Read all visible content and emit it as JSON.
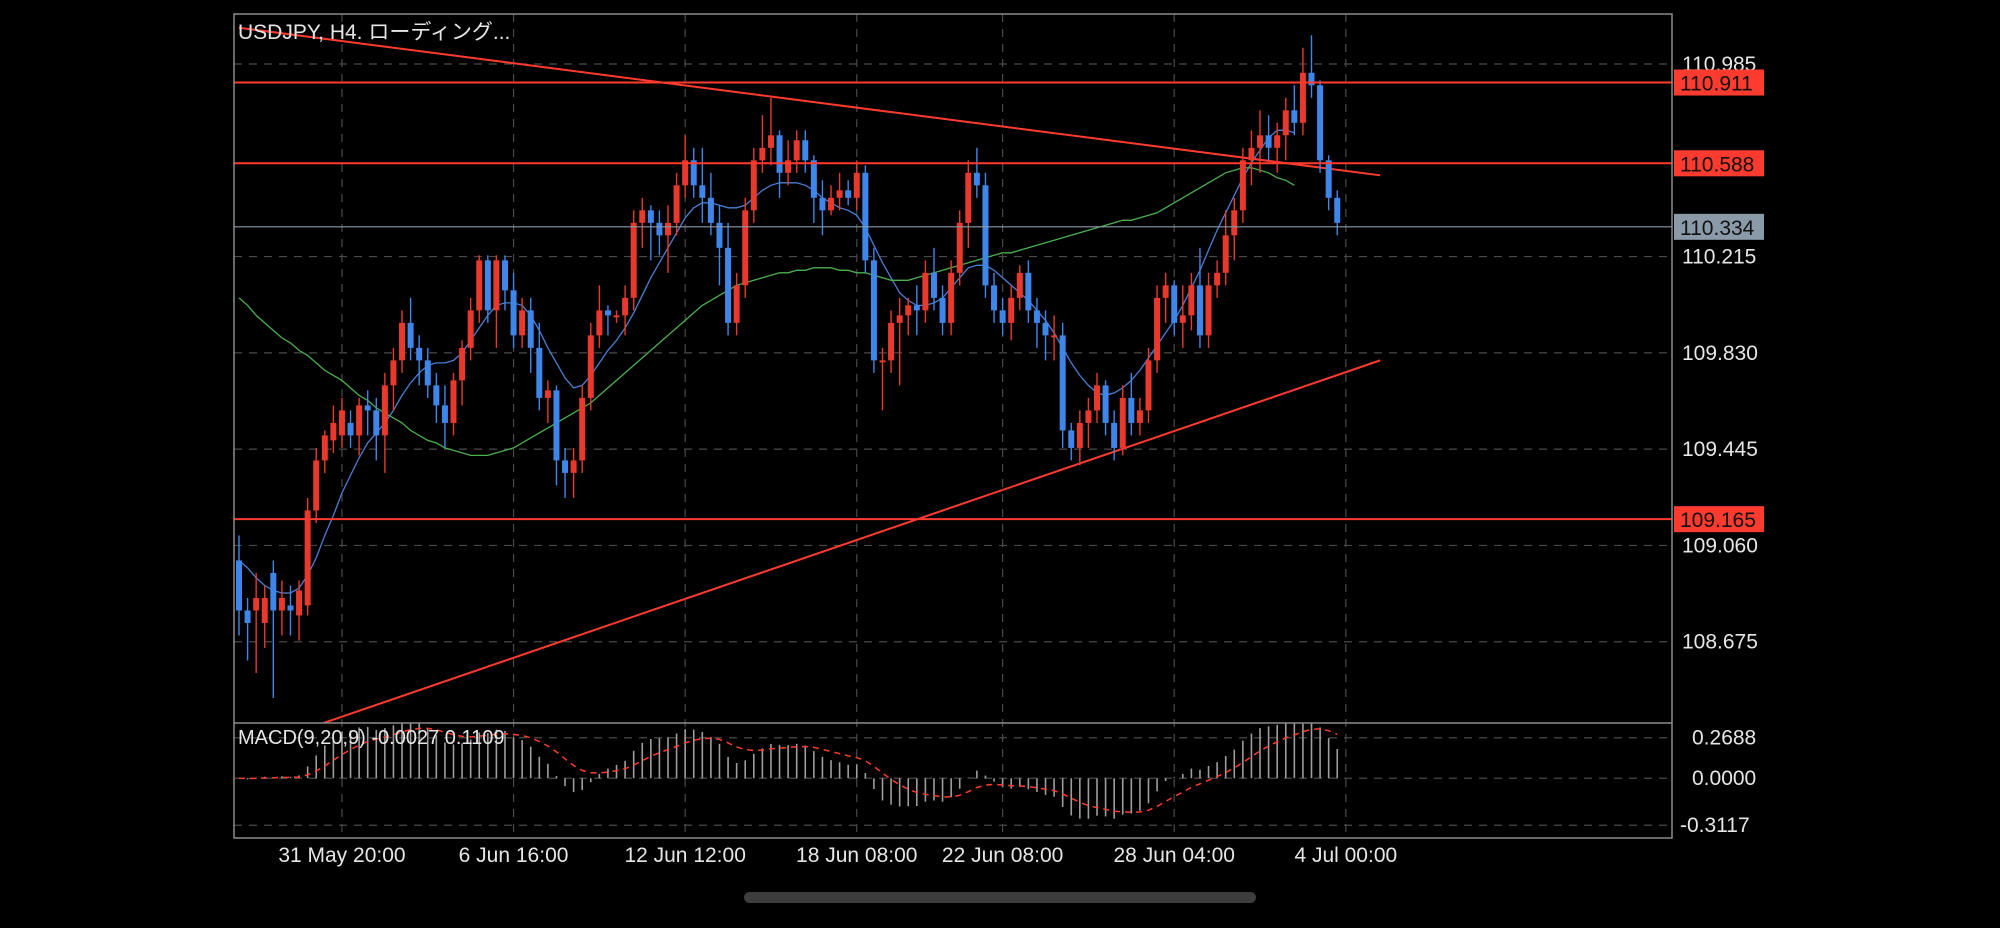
{
  "chart_data": {
    "type": "candlestick",
    "title": "USDJPY, H4. ローディング...",
    "symbol": "USDJPY",
    "timeframe": "H4",
    "grid": true,
    "price_axis": {
      "ylim": [
        108.35,
        111.185
      ],
      "ticks": [
        "110.985",
        "110.215",
        "109.830",
        "109.445",
        "109.060",
        "108.675"
      ],
      "tick_values": [
        110.985,
        110.215,
        109.83,
        109.445,
        109.06,
        108.675
      ]
    },
    "x_axis": {
      "ticks": [
        "31 May 20:00",
        "6 Jun 16:00",
        "12 Jun 12:00",
        "18 Jun 08:00",
        "22 Jun 08:00",
        "28 Jun 04:00",
        "4 Jul 00:00"
      ],
      "tick_bars": [
        12,
        32,
        52,
        72,
        89,
        109,
        129
      ]
    },
    "horizontal_lines": [
      {
        "value": 110.911,
        "label": "110.911",
        "color": "#ff3b30"
      },
      {
        "value": 110.588,
        "label": "110.588",
        "color": "#ff3b30"
      },
      {
        "value": 109.165,
        "label": "109.165",
        "color": "#ff3b30"
      }
    ],
    "current_price": {
      "value": 110.334,
      "label": "110.334",
      "color": "#8a9aa8"
    },
    "trendlines": [
      {
        "from": {
          "bar": 0,
          "price": 111.13
        },
        "to": {
          "bar": 133,
          "price": 110.54
        },
        "color": "#ff3b30"
      },
      {
        "from": {
          "bar": 9,
          "price": 108.34
        },
        "to": {
          "bar": 133,
          "price": 109.8
        },
        "color": "#ff3b30"
      }
    ],
    "candles": [
      [
        109.0,
        109.1,
        108.7,
        108.8
      ],
      [
        108.8,
        108.85,
        108.6,
        108.75
      ],
      [
        108.8,
        108.95,
        108.55,
        108.85
      ],
      [
        108.75,
        108.9,
        108.65,
        108.85
      ],
      [
        108.95,
        109.0,
        108.45,
        108.8
      ],
      [
        108.8,
        108.92,
        108.7,
        108.85
      ],
      [
        108.82,
        108.9,
        108.7,
        108.8
      ],
      [
        108.78,
        108.92,
        108.68,
        108.88
      ],
      [
        108.82,
        109.25,
        108.78,
        109.2
      ],
      [
        109.2,
        109.45,
        109.15,
        109.4
      ],
      [
        109.4,
        109.52,
        109.35,
        109.5
      ],
      [
        109.48,
        109.62,
        109.43,
        109.55
      ],
      [
        109.5,
        109.65,
        109.45,
        109.6
      ],
      [
        109.55,
        109.6,
        109.45,
        109.5
      ],
      [
        109.5,
        109.65,
        109.42,
        109.62
      ],
      [
        109.62,
        109.68,
        109.5,
        109.6
      ],
      [
        109.6,
        109.65,
        109.4,
        109.5
      ],
      [
        109.5,
        109.75,
        109.35,
        109.7
      ],
      [
        109.7,
        109.85,
        109.6,
        109.8
      ],
      [
        109.8,
        110.0,
        109.75,
        109.95
      ],
      [
        109.95,
        110.05,
        109.8,
        109.85
      ],
      [
        109.85,
        109.9,
        109.7,
        109.8
      ],
      [
        109.8,
        109.85,
        109.65,
        109.7
      ],
      [
        109.7,
        109.75,
        109.55,
        109.62
      ],
      [
        109.62,
        109.7,
        109.45,
        109.55
      ],
      [
        109.55,
        109.75,
        109.5,
        109.72
      ],
      [
        109.72,
        109.88,
        109.62,
        109.85
      ],
      [
        109.85,
        110.05,
        109.8,
        110.0
      ],
      [
        110.0,
        110.22,
        109.95,
        110.2
      ],
      [
        110.2,
        110.22,
        109.95,
        110.0
      ],
      [
        110.0,
        110.22,
        109.85,
        110.2
      ],
      [
        110.2,
        110.22,
        110.0,
        110.08
      ],
      [
        110.08,
        110.15,
        109.85,
        109.9
      ],
      [
        109.9,
        110.05,
        109.85,
        110.0
      ],
      [
        110.0,
        110.05,
        109.75,
        109.85
      ],
      [
        109.85,
        109.95,
        109.6,
        109.65
      ],
      [
        109.65,
        109.72,
        109.55,
        109.68
      ],
      [
        109.68,
        109.7,
        109.3,
        109.4
      ],
      [
        109.4,
        109.45,
        109.25,
        109.35
      ],
      [
        109.35,
        109.45,
        109.25,
        109.4
      ],
      [
        109.4,
        109.7,
        109.35,
        109.65
      ],
      [
        109.65,
        109.95,
        109.6,
        109.9
      ],
      [
        109.9,
        110.1,
        109.85,
        110.0
      ],
      [
        110.0,
        110.02,
        109.9,
        109.98
      ],
      [
        109.98,
        110.0,
        109.95,
        109.98
      ],
      [
        109.98,
        110.1,
        109.9,
        110.05
      ],
      [
        110.05,
        110.4,
        110.0,
        110.35
      ],
      [
        110.35,
        110.45,
        110.25,
        110.4
      ],
      [
        110.4,
        110.42,
        110.2,
        110.35
      ],
      [
        110.35,
        110.4,
        110.22,
        110.3
      ],
      [
        110.3,
        110.42,
        110.15,
        110.35
      ],
      [
        110.35,
        110.55,
        110.3,
        110.5
      ],
      [
        110.5,
        110.7,
        110.45,
        110.6
      ],
      [
        110.6,
        110.65,
        110.45,
        110.5
      ],
      [
        110.5,
        110.65,
        110.35,
        110.45
      ],
      [
        110.45,
        110.55,
        110.3,
        110.35
      ],
      [
        110.35,
        110.42,
        110.1,
        110.25
      ],
      [
        110.25,
        110.35,
        109.9,
        109.95
      ],
      [
        109.95,
        110.15,
        109.9,
        110.1
      ],
      [
        110.1,
        110.45,
        110.05,
        110.4
      ],
      [
        110.4,
        110.65,
        110.35,
        110.6
      ],
      [
        110.6,
        110.78,
        110.55,
        110.65
      ],
      [
        110.65,
        110.85,
        110.58,
        110.7
      ],
      [
        110.7,
        110.72,
        110.45,
        110.55
      ],
      [
        110.55,
        110.68,
        110.5,
        110.6
      ],
      [
        110.6,
        110.72,
        110.55,
        110.68
      ],
      [
        110.68,
        110.72,
        110.55,
        110.6
      ],
      [
        110.6,
        110.62,
        110.35,
        110.45
      ],
      [
        110.45,
        110.52,
        110.3,
        110.4
      ],
      [
        110.4,
        110.5,
        110.38,
        110.45
      ],
      [
        110.45,
        110.55,
        110.4,
        110.48
      ],
      [
        110.48,
        110.52,
        110.42,
        110.45
      ],
      [
        110.45,
        110.6,
        110.4,
        110.55
      ],
      [
        110.55,
        110.58,
        110.15,
        110.2
      ],
      [
        110.2,
        110.25,
        109.75,
        109.8
      ],
      [
        109.8,
        109.85,
        109.6,
        109.8
      ],
      [
        109.8,
        110.0,
        109.75,
        109.95
      ],
      [
        109.95,
        110.05,
        109.7,
        109.98
      ],
      [
        109.98,
        110.05,
        109.9,
        110.02
      ],
      [
        110.02,
        110.1,
        109.9,
        110.0
      ],
      [
        110.0,
        110.2,
        109.95,
        110.15
      ],
      [
        110.15,
        110.25,
        110.0,
        110.05
      ],
      [
        110.05,
        110.1,
        109.9,
        109.95
      ],
      [
        109.95,
        110.2,
        109.9,
        110.15
      ],
      [
        110.15,
        110.4,
        110.1,
        110.35
      ],
      [
        110.35,
        110.6,
        110.25,
        110.55
      ],
      [
        110.55,
        110.65,
        110.45,
        110.5
      ],
      [
        110.5,
        110.55,
        110.05,
        110.1
      ],
      [
        110.1,
        110.15,
        109.95,
        110.0
      ],
      [
        110.0,
        110.05,
        109.9,
        109.95
      ],
      [
        109.95,
        110.1,
        109.88,
        110.05
      ],
      [
        110.05,
        110.18,
        110.0,
        110.15
      ],
      [
        110.15,
        110.2,
        109.95,
        110.0
      ],
      [
        110.0,
        110.05,
        109.85,
        109.95
      ],
      [
        109.95,
        110.0,
        109.8,
        109.9
      ],
      [
        109.9,
        109.98,
        109.8,
        109.9
      ],
      [
        109.9,
        109.95,
        109.45,
        109.52
      ],
      [
        109.52,
        109.55,
        109.4,
        109.45
      ],
      [
        109.45,
        109.6,
        109.38,
        109.55
      ],
      [
        109.55,
        109.65,
        109.45,
        109.6
      ],
      [
        109.6,
        109.75,
        109.55,
        109.7
      ],
      [
        109.7,
        109.72,
        109.5,
        109.55
      ],
      [
        109.55,
        109.6,
        109.4,
        109.45
      ],
      [
        109.45,
        109.7,
        109.42,
        109.65
      ],
      [
        109.65,
        109.75,
        109.5,
        109.55
      ],
      [
        109.55,
        109.65,
        109.5,
        109.6
      ],
      [
        109.6,
        109.85,
        109.55,
        109.8
      ],
      [
        109.8,
        110.1,
        109.75,
        110.05
      ],
      [
        110.05,
        110.15,
        109.95,
        110.1
      ],
      [
        110.1,
        110.12,
        109.9,
        109.95
      ],
      [
        109.95,
        110.1,
        109.85,
        109.98
      ],
      [
        109.98,
        110.15,
        109.92,
        110.1
      ],
      [
        110.1,
        110.25,
        109.85,
        109.9
      ],
      [
        109.9,
        110.15,
        109.85,
        110.1
      ],
      [
        110.1,
        110.2,
        110.05,
        110.15
      ],
      [
        110.15,
        110.4,
        110.1,
        110.3
      ],
      [
        110.3,
        110.45,
        110.2,
        110.4
      ],
      [
        110.4,
        110.65,
        110.35,
        110.6
      ],
      [
        110.6,
        110.72,
        110.5,
        110.65
      ],
      [
        110.65,
        110.8,
        110.55,
        110.7
      ],
      [
        110.7,
        110.78,
        110.6,
        110.65
      ],
      [
        110.65,
        110.75,
        110.55,
        110.7
      ],
      [
        110.7,
        110.85,
        110.6,
        110.8
      ],
      [
        110.8,
        110.9,
        110.7,
        110.75
      ],
      [
        110.75,
        111.05,
        110.7,
        110.95
      ],
      [
        110.95,
        111.1,
        110.85,
        110.9
      ],
      [
        110.9,
        110.92,
        110.55,
        110.6
      ],
      [
        110.6,
        110.62,
        110.4,
        110.45
      ],
      [
        110.45,
        110.48,
        110.3,
        110.35
      ]
    ],
    "moving_averages": [
      {
        "name": "MA fast",
        "color": "#4a7fd4",
        "values": [
          109.0,
          108.97,
          108.93,
          108.9,
          108.88,
          108.87,
          108.87,
          108.89,
          108.94,
          109.01,
          109.1,
          109.18,
          109.27,
          109.34,
          109.41,
          109.47,
          109.51,
          109.55,
          109.6,
          109.66,
          109.71,
          109.75,
          109.78,
          109.79,
          109.79,
          109.8,
          109.83,
          109.88,
          109.93,
          109.98,
          110.02,
          110.03,
          110.03,
          110.02,
          109.98,
          109.92,
          109.85,
          109.79,
          109.73,
          109.69,
          109.7,
          109.74,
          109.79,
          109.84,
          109.88,
          109.93,
          109.99,
          110.06,
          110.13,
          110.19,
          110.25,
          110.31,
          110.37,
          110.41,
          110.43,
          110.43,
          110.42,
          110.41,
          110.41,
          110.42,
          110.45,
          110.48,
          110.5,
          110.51,
          110.51,
          110.51,
          110.5,
          110.48,
          110.45,
          110.43,
          110.41,
          110.4,
          110.38,
          110.33,
          110.26,
          110.19,
          110.13,
          110.07,
          110.04,
          110.02,
          110.02,
          110.03,
          110.05,
          110.09,
          110.13,
          110.17,
          110.18,
          110.18,
          110.16,
          110.13,
          110.1,
          110.07,
          110.04,
          110.0,
          109.96,
          109.91,
          109.85,
          109.79,
          109.74,
          109.7,
          109.67,
          109.66,
          109.67,
          109.69,
          109.72,
          109.76,
          109.81,
          109.86,
          109.91,
          109.96,
          110.02,
          110.09,
          110.16,
          110.24,
          110.32,
          110.39,
          110.46,
          110.53,
          110.59,
          110.64,
          110.69,
          110.72,
          110.72,
          110.71
        ]
      },
      {
        "name": "MA slow",
        "color": "#4caf50",
        "values": [
          110.05,
          110.02,
          109.98,
          109.95,
          109.92,
          109.89,
          109.87,
          109.84,
          109.82,
          109.79,
          109.76,
          109.74,
          109.72,
          109.69,
          109.66,
          109.64,
          109.61,
          109.59,
          109.57,
          109.55,
          109.52,
          109.5,
          109.48,
          109.47,
          109.45,
          109.44,
          109.43,
          109.42,
          109.42,
          109.42,
          109.43,
          109.44,
          109.45,
          109.47,
          109.49,
          109.51,
          109.53,
          109.55,
          109.57,
          109.59,
          109.61,
          109.63,
          109.66,
          109.69,
          109.72,
          109.75,
          109.78,
          109.81,
          109.84,
          109.87,
          109.9,
          109.93,
          109.96,
          109.99,
          110.02,
          110.04,
          110.06,
          110.08,
          110.1,
          110.11,
          110.12,
          110.13,
          110.14,
          110.15,
          110.15,
          110.16,
          110.16,
          110.17,
          110.17,
          110.17,
          110.16,
          110.16,
          110.15,
          110.15,
          110.14,
          110.13,
          110.12,
          110.12,
          110.12,
          110.13,
          110.14,
          110.15,
          110.16,
          110.17,
          110.18,
          110.19,
          110.2,
          110.21,
          110.22,
          110.23,
          110.23,
          110.24,
          110.25,
          110.26,
          110.27,
          110.28,
          110.29,
          110.3,
          110.31,
          110.32,
          110.33,
          110.34,
          110.35,
          110.36,
          110.36,
          110.37,
          110.38,
          110.39,
          110.41,
          110.43,
          110.45,
          110.47,
          110.49,
          110.51,
          110.53,
          110.55,
          110.56,
          110.57,
          110.57,
          110.56,
          110.55,
          110.53,
          110.52,
          110.5
        ]
      }
    ],
    "macd": {
      "label": "MACD(9,20,9) -0.0027 0.1109",
      "params": "9,20,9",
      "macd_value": -0.0027,
      "signal_value": 0.1109,
      "ylim": [
        -0.37,
        0.34
      ],
      "ticks": [
        "0.2688",
        "0.0000",
        "-0.3117"
      ],
      "tick_values": [
        0.2688,
        0.0,
        -0.3117
      ],
      "histogram_color": "#9e9e9e",
      "signal_color": "#ff3b30"
    }
  }
}
